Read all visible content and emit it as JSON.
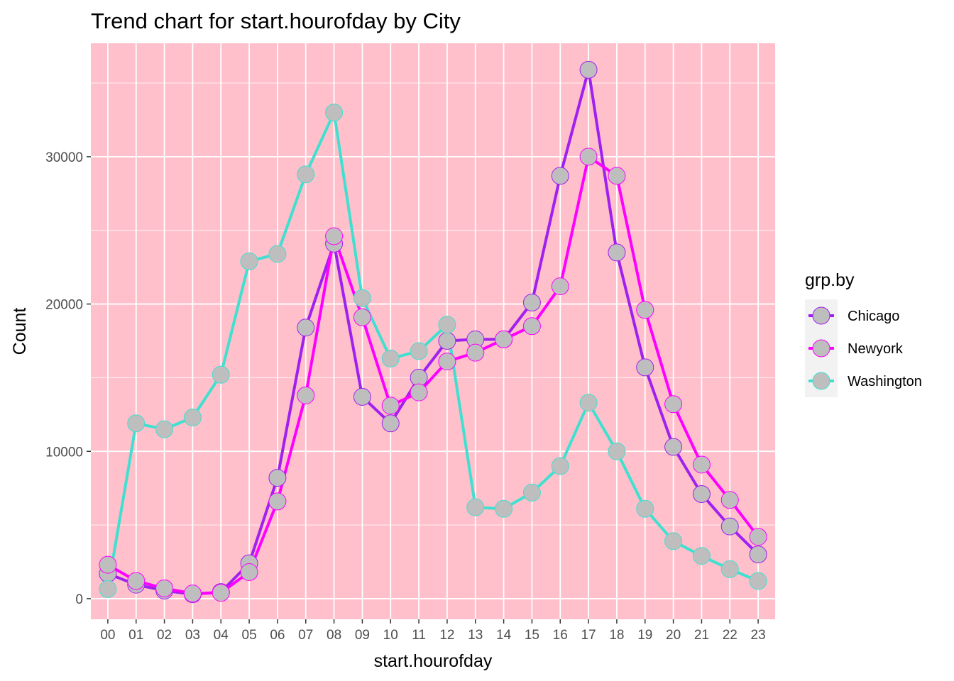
{
  "chart_data": {
    "type": "line",
    "title": "Trend chart for start.hourofday by City",
    "xlabel": "start.hourofday",
    "ylabel": "Count",
    "categories": [
      "00",
      "01",
      "02",
      "03",
      "04",
      "05",
      "06",
      "07",
      "08",
      "09",
      "10",
      "11",
      "12",
      "13",
      "14",
      "15",
      "16",
      "17",
      "18",
      "19",
      "20",
      "21",
      "22",
      "23"
    ],
    "y_ticks": [
      0,
      10000,
      20000,
      30000
    ],
    "y_tick_labels": [
      "0",
      "10000",
      "20000",
      "30000"
    ],
    "ylim": [
      -1400,
      37700
    ],
    "grid": true,
    "panel_background": "#ffc0cb",
    "point_fill": "#bebebe",
    "legend": {
      "title": "grp.by",
      "position": "right"
    },
    "series": [
      {
        "name": "Chicago",
        "color": "#a020f0",
        "values": [
          1700,
          950,
          550,
          300,
          450,
          2400,
          8200,
          18400,
          24100,
          13700,
          11900,
          15000,
          17500,
          17600,
          17600,
          20100,
          28700,
          35900,
          23500,
          15700,
          10300,
          7100,
          4900,
          3000
        ]
      },
      {
        "name": "Newyork",
        "color": "#ff00ff",
        "values": [
          2300,
          1200,
          700,
          350,
          400,
          1800,
          6600,
          13800,
          24600,
          19100,
          13100,
          14000,
          16100,
          16700,
          17600,
          18500,
          21200,
          30000,
          28700,
          19600,
          13200,
          9100,
          6700,
          4200
        ]
      },
      {
        "name": "Washington",
        "color": "#40e0d0",
        "values": [
          650,
          11900,
          11500,
          12300,
          15200,
          22900,
          23400,
          28800,
          33000,
          20400,
          16300,
          16800,
          18600,
          6200,
          6100,
          7200,
          9000,
          13300,
          10000,
          6100,
          3900,
          2900,
          2000,
          1200
        ]
      }
    ]
  }
}
